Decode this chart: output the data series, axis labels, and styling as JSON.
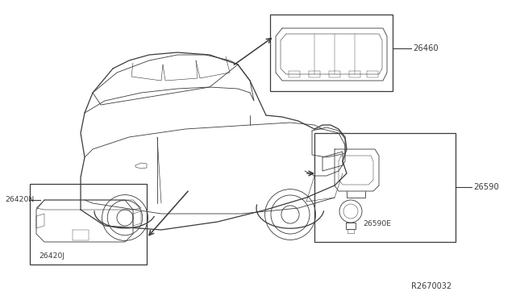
{
  "background_color": "#ffffff",
  "fig_width": 6.4,
  "fig_height": 3.72,
  "dpi": 100,
  "line_color": "#3a3a3a",
  "text_color": "#3a3a3a",
  "box_color": "#3a3a3a",
  "label_26460": "26460",
  "label_26590": "26590",
  "label_26590E": "26590E",
  "label_26420N": "26420N",
  "label_26420J": "26420J",
  "label_ref": "R2670032",
  "fontsize_main": 7.2,
  "fontsize_ref": 7.0
}
